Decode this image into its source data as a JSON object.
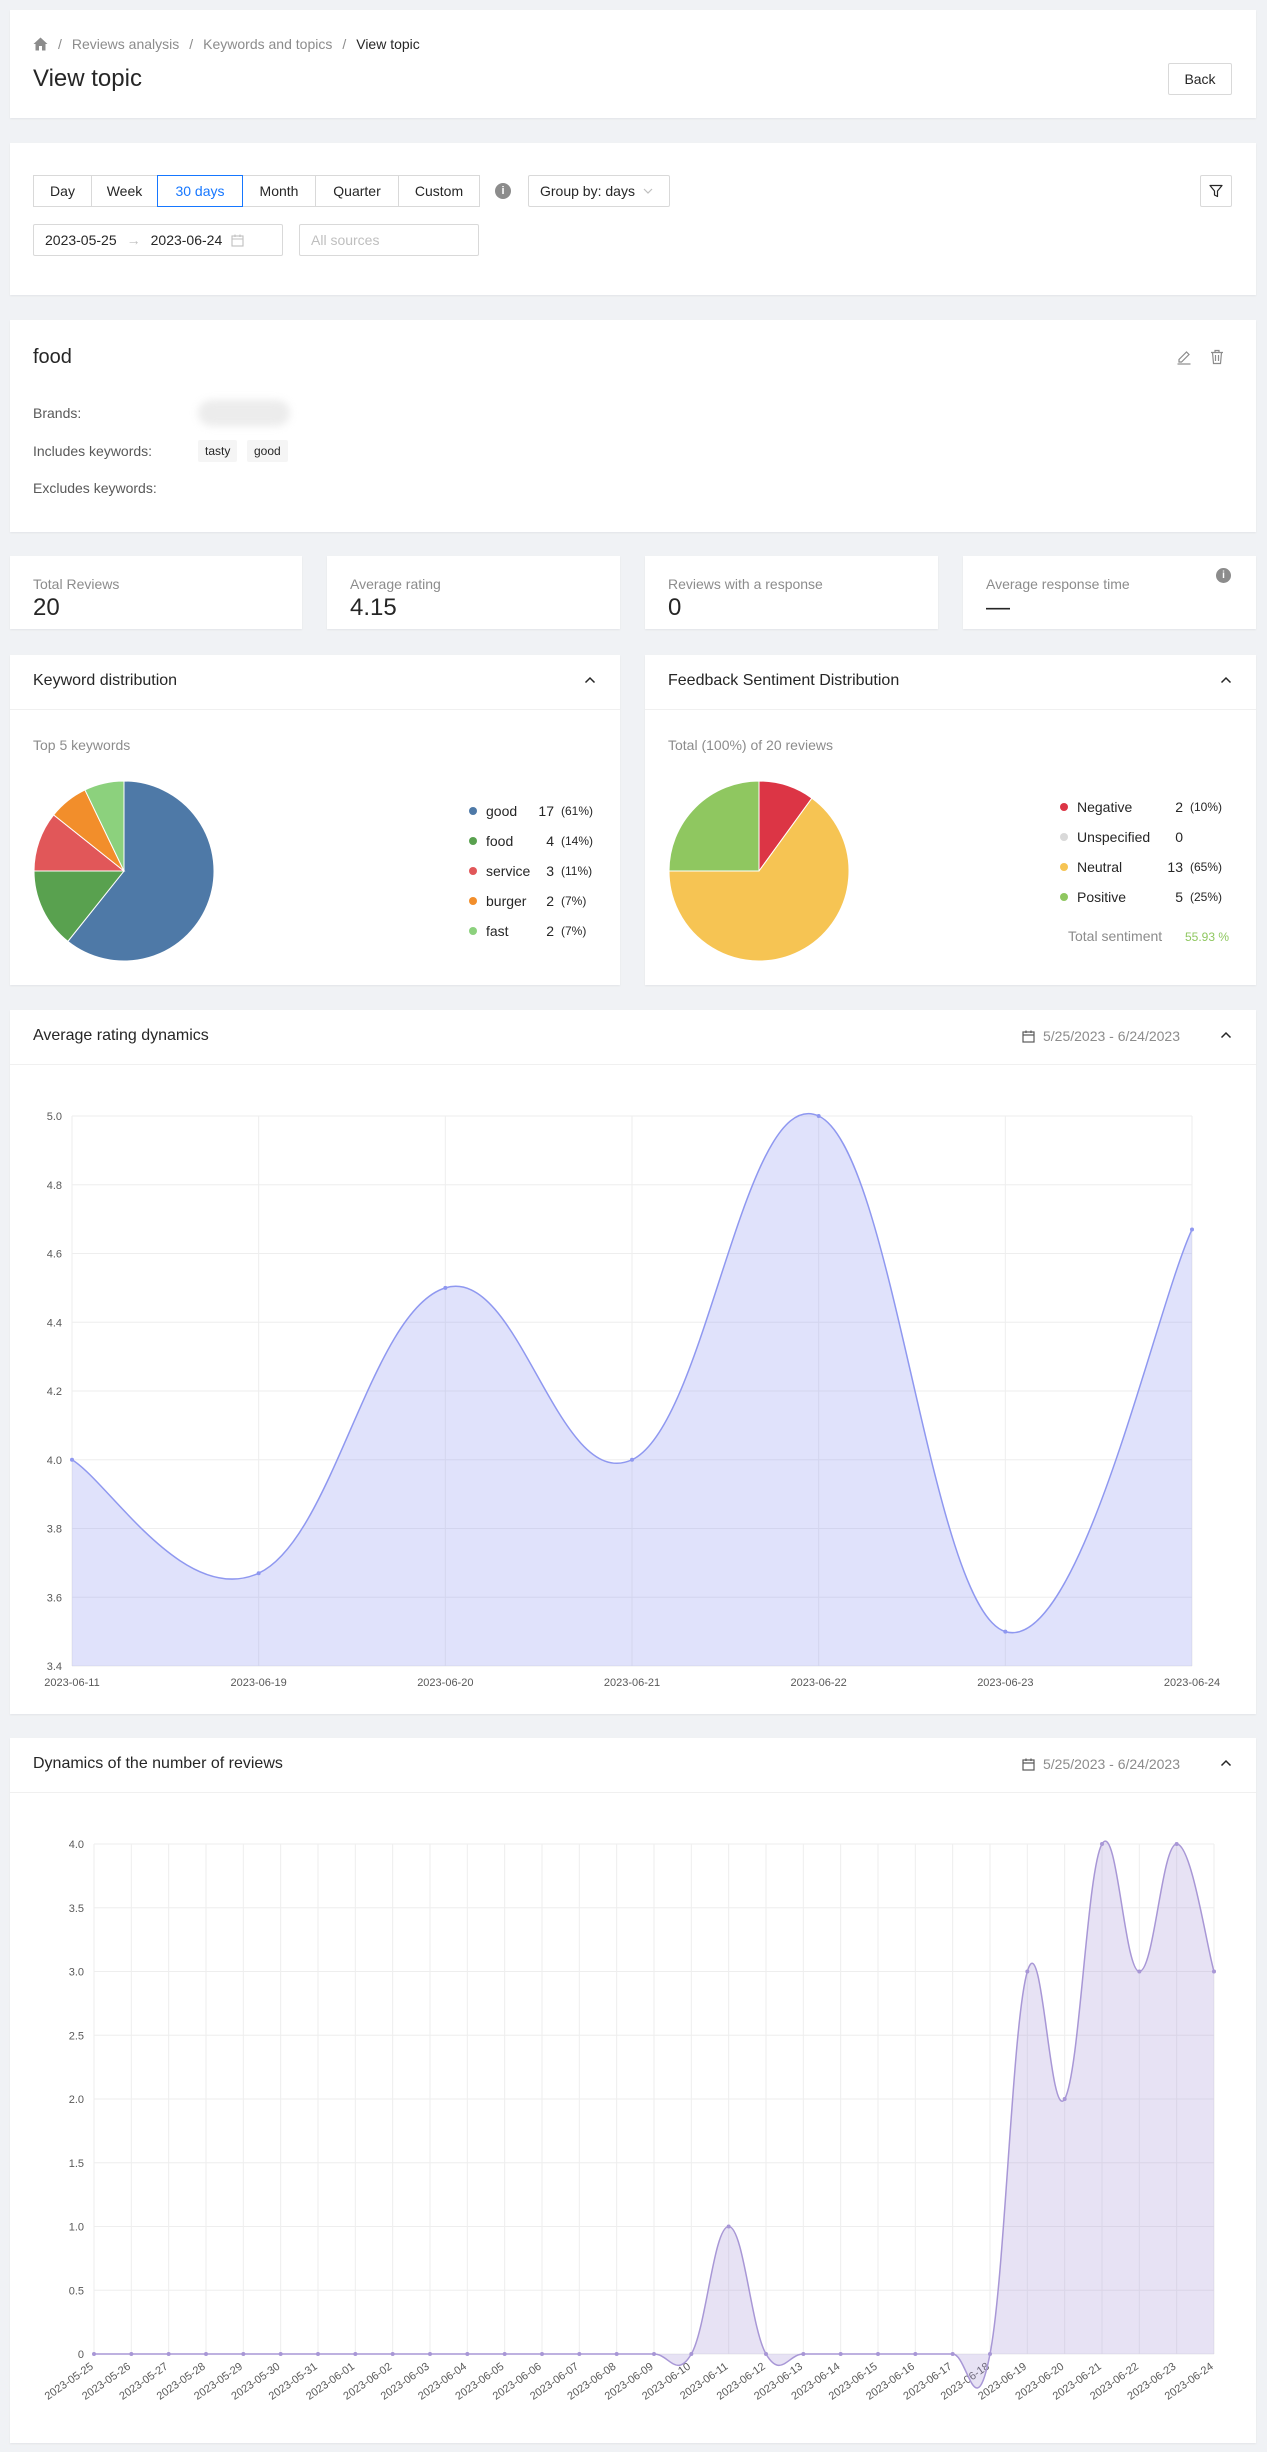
{
  "breadcrumb": {
    "items": [
      "Reviews analysis",
      "Keywords and topics"
    ],
    "current": "View topic"
  },
  "page_title": "View topic",
  "back_label": "Back",
  "periods": [
    {
      "label": "Day",
      "active": false
    },
    {
      "label": "Week",
      "active": false
    },
    {
      "label": "30 days",
      "active": true
    },
    {
      "label": "Month",
      "active": false
    },
    {
      "label": "Quarter",
      "active": false
    },
    {
      "label": "Custom",
      "active": false
    }
  ],
  "group_by": "Group by: days",
  "date_from": "2023-05-25",
  "date_to": "2023-06-24",
  "sources_placeholder": "All sources",
  "topic": {
    "name": "food",
    "brands_label": "Brands:",
    "includes_label": "Includes keywords:",
    "includes": [
      "tasty",
      "good"
    ],
    "excludes_label": "Excludes keywords:"
  },
  "stats": [
    {
      "label": "Total Reviews",
      "value": "20"
    },
    {
      "label": "Average rating",
      "value": "4.15"
    },
    {
      "label": "Reviews with a response",
      "value": "0"
    },
    {
      "label": "Average response time",
      "value": "—"
    }
  ],
  "keyword_card": {
    "title": "Keyword distribution",
    "subtitle": "Top 5 keywords",
    "items": [
      {
        "label": "good",
        "count": "17",
        "pct": "(61%)",
        "value": 17,
        "color": "#4e79a7"
      },
      {
        "label": "food",
        "count": "4",
        "pct": "(14%)",
        "value": 4,
        "color": "#59a14f"
      },
      {
        "label": "service",
        "count": "3",
        "pct": "(11%)",
        "value": 3,
        "color": "#e15759"
      },
      {
        "label": "burger",
        "count": "2",
        "pct": "(7%)",
        "value": 2,
        "color": "#f28e2b"
      },
      {
        "label": "fast",
        "count": "2",
        "pct": "(7%)",
        "value": 2,
        "color": "#8cd17d"
      }
    ]
  },
  "sentiment_card": {
    "title": "Feedback Sentiment Distribution",
    "subtitle": "Total (100%) of 20 reviews",
    "items": [
      {
        "label": "Negative",
        "count": "2",
        "pct": "(10%)",
        "value": 2,
        "color": "#dc3545"
      },
      {
        "label": "Unspecified",
        "count": "0",
        "pct": "",
        "value": 0,
        "color": "#d9d9d9"
      },
      {
        "label": "Neutral",
        "count": "13",
        "pct": "(65%)",
        "value": 13,
        "color": "#f6c453"
      },
      {
        "label": "Positive",
        "count": "5",
        "pct": "(25%)",
        "value": 5,
        "color": "#8fc760"
      }
    ],
    "total_label": "Total sentiment",
    "total_value": "55.93 %"
  },
  "rating_chart": {
    "title": "Average rating dynamics",
    "date_range": "5/25/2023 - 6/24/2023",
    "color": "#8f98f0"
  },
  "reviews_chart": {
    "title": "Dynamics of the number of reviews",
    "date_range": "5/25/2023 - 6/24/2023",
    "color": "#a897d6"
  },
  "chart_data": [
    {
      "type": "area",
      "categories": [
        "2023-06-11",
        "2023-06-19",
        "2023-06-20",
        "2023-06-21",
        "2023-06-22",
        "2023-06-23",
        "2023-06-24"
      ],
      "values": [
        4.0,
        3.67,
        4.5,
        4.0,
        5.0,
        3.5,
        4.67
      ],
      "yticks": [
        "3.4",
        "3.6",
        "3.8",
        "4.0",
        "4.2",
        "4.4",
        "4.6",
        "4.8",
        "5.0"
      ],
      "ylim": [
        3.4,
        5.0
      ],
      "grid": true
    },
    {
      "type": "area",
      "categories": [
        "2023-05-25",
        "2023-05-26",
        "2023-05-27",
        "2023-05-28",
        "2023-05-29",
        "2023-05-30",
        "2023-05-31",
        "2023-06-01",
        "2023-06-02",
        "2023-06-03",
        "2023-06-04",
        "2023-06-05",
        "2023-06-06",
        "2023-06-07",
        "2023-06-08",
        "2023-06-09",
        "2023-06-10",
        "2023-06-11",
        "2023-06-12",
        "2023-06-13",
        "2023-06-14",
        "2023-06-15",
        "2023-06-16",
        "2023-06-17",
        "2023-06-18",
        "2023-06-19",
        "2023-06-20",
        "2023-06-21",
        "2023-06-22",
        "2023-06-23",
        "2023-06-24"
      ],
      "values": [
        0,
        0,
        0,
        0,
        0,
        0,
        0,
        0,
        0,
        0,
        0,
        0,
        0,
        0,
        0,
        0,
        0,
        1,
        0,
        0,
        0,
        0,
        0,
        0,
        0,
        3,
        2,
        4,
        3,
        4,
        3
      ],
      "yticks": [
        "0",
        "0.5",
        "1.0",
        "1.5",
        "2.0",
        "2.5",
        "3.0",
        "3.5",
        "4.0"
      ],
      "ylim": [
        0,
        4
      ],
      "grid": true
    }
  ]
}
